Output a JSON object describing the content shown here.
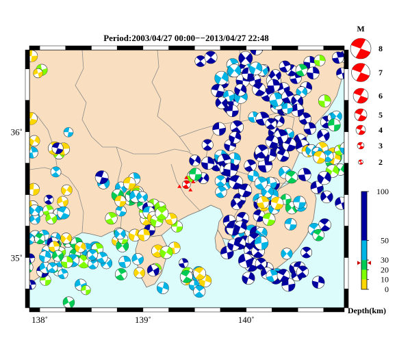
{
  "title": "Period:2003/04/27 00:00−−2013/04/27 22:48",
  "map": {
    "lon_range": [
      137.9,
      140.95
    ],
    "lat_range": [
      34.6,
      36.65
    ],
    "x_ticks": [
      {
        "value": 138,
        "label": "138˚"
      },
      {
        "value": 139,
        "label": "139˚"
      },
      {
        "value": 140,
        "label": "140˚"
      }
    ],
    "y_ticks": [
      {
        "value": 36,
        "label": "36˚"
      },
      {
        "value": 35,
        "label": "35˚"
      }
    ],
    "colors": {
      "land": "#f9dfc0",
      "sea": "#dcfbfb",
      "border": "#8a8a8a",
      "frame_dark": "#000000",
      "frame_light": "#ffffff"
    },
    "highlight_event": {
      "lon": 139.42,
      "lat": 35.58,
      "color": "#ff0000"
    }
  },
  "magnitude_legend": {
    "title": "M",
    "items": [
      "8",
      "7",
      "6",
      "5",
      "4",
      "3",
      "2"
    ],
    "color": "#ff0000"
  },
  "depth_scale": {
    "label": "Depth(km)",
    "max": 100,
    "tick_labels": [
      "100",
      "50",
      "30",
      "20",
      "10",
      "0"
    ],
    "tick_values": [
      100,
      50,
      30,
      20,
      10,
      0
    ],
    "bands": [
      {
        "from": 0,
        "to": 10,
        "color": "#ffd700"
      },
      {
        "from": 10,
        "to": 20,
        "color": "#7fff00"
      },
      {
        "from": 20,
        "to": 30,
        "color": "#00cc55"
      },
      {
        "from": 30,
        "to": 50,
        "color": "#00b4e6"
      },
      {
        "from": 50,
        "to": 100,
        "color": "#0000a0"
      }
    ],
    "marker_depth": 27,
    "marker_color": "#cc0000"
  },
  "event_clusters": [
    {
      "lon": 140.2,
      "lat": 36.0,
      "sx": 0.28,
      "sy": 0.35,
      "n": 60,
      "depth": 70,
      "mag": 4.6
    },
    {
      "lon": 139.95,
      "lat": 36.3,
      "sx": 0.18,
      "sy": 0.15,
      "n": 25,
      "depth": 60,
      "mag": 4.7
    },
    {
      "lon": 140.55,
      "lat": 36.4,
      "sx": 0.22,
      "sy": 0.15,
      "n": 20,
      "depth": 65,
      "mag": 4.5
    },
    {
      "lon": 139.75,
      "lat": 35.65,
      "sx": 0.18,
      "sy": 0.12,
      "n": 20,
      "depth": 55,
      "mag": 4.5
    },
    {
      "lon": 140.0,
      "lat": 35.1,
      "sx": 0.12,
      "sy": 0.2,
      "n": 25,
      "depth": 70,
      "mag": 4.6
    },
    {
      "lon": 140.3,
      "lat": 34.85,
      "sx": 0.18,
      "sy": 0.12,
      "n": 15,
      "depth": 55,
      "mag": 4.5
    },
    {
      "lon": 140.45,
      "lat": 35.4,
      "sx": 0.25,
      "sy": 0.15,
      "n": 20,
      "depth": 40,
      "mag": 4.5
    },
    {
      "lon": 140.8,
      "lat": 35.85,
      "sx": 0.12,
      "sy": 0.12,
      "n": 12,
      "depth": 25,
      "mag": 4.4
    },
    {
      "lon": 138.5,
      "lat": 35.0,
      "sx": 0.3,
      "sy": 0.15,
      "n": 45,
      "depth": 28,
      "mag": 4.3
    },
    {
      "lon": 138.1,
      "lat": 35.25,
      "sx": 0.15,
      "sy": 0.2,
      "n": 25,
      "depth": 22,
      "mag": 4.3
    },
    {
      "lon": 138.9,
      "lat": 35.45,
      "sx": 0.15,
      "sy": 0.12,
      "n": 20,
      "depth": 25,
      "mag": 4.4
    },
    {
      "lon": 139.2,
      "lat": 35.2,
      "sx": 0.15,
      "sy": 0.18,
      "n": 15,
      "depth": 18,
      "mag": 4.4
    },
    {
      "lon": 138.1,
      "lat": 35.85,
      "sx": 0.12,
      "sy": 0.12,
      "n": 10,
      "depth": 15,
      "mag": 4.3
    },
    {
      "lon": 139.4,
      "lat": 34.9,
      "sx": 0.15,
      "sy": 0.1,
      "n": 10,
      "depth": 35,
      "mag": 4.3
    },
    {
      "lon": 140.9,
      "lat": 36.0,
      "sx": 0.1,
      "sy": 0.2,
      "n": 8,
      "depth": 20,
      "mag": 4.5
    },
    {
      "lon": 138.0,
      "lat": 36.5,
      "sx": 0.1,
      "sy": 0.1,
      "n": 4,
      "depth": 12,
      "mag": 4.2
    }
  ]
}
